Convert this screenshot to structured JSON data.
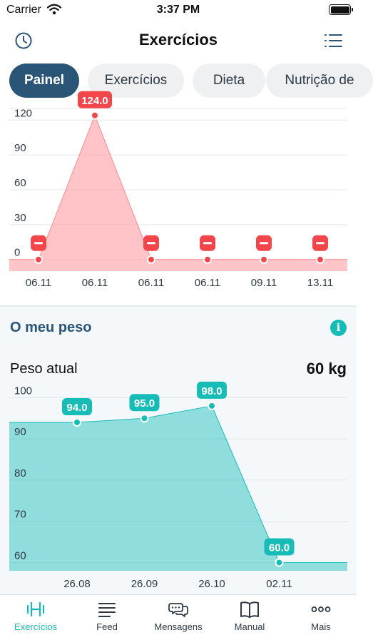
{
  "status_bar": {
    "carrier": "Carrier",
    "time": "3:37 PM"
  },
  "header": {
    "title": "Exercícios"
  },
  "tabs": [
    {
      "label": "Painel",
      "active": true
    },
    {
      "label": "Exercícios",
      "active": false
    },
    {
      "label": "Dieta",
      "active": false
    },
    {
      "label": "Nutrição de",
      "active": false
    }
  ],
  "chart_data": [
    {
      "type": "area",
      "categories": [
        "06.11",
        "06.11",
        "06.11",
        "06.11",
        "09.11",
        "13.11"
      ],
      "values": [
        0,
        124,
        0,
        0,
        0,
        0
      ],
      "point_labels": [
        "",
        "124.0",
        "",
        "",
        "",
        ""
      ],
      "yticks": [
        0,
        30,
        60,
        90,
        120
      ],
      "ylim": [
        -10,
        130
      ],
      "color": "#ff8a8f",
      "label_color": "#f2464b"
    },
    {
      "type": "area",
      "categories": [
        "26.08",
        "26.09",
        "26.10",
        "02.11"
      ],
      "values": [
        94,
        95,
        98,
        60
      ],
      "point_labels": [
        "94.0",
        "95.0",
        "98.0",
        "60.0"
      ],
      "yticks": [
        60,
        70,
        80,
        90,
        100
      ],
      "ylim": [
        58,
        103
      ],
      "color": "#17bcb7"
    }
  ],
  "weight_card": {
    "title": "O meu peso",
    "current_label": "Peso atual",
    "current_value": "60 kg"
  },
  "bottom_tabs": [
    {
      "label": "Exercícios",
      "icon": "dumbbell-icon",
      "active": true
    },
    {
      "label": "Feed",
      "icon": "feed-lines-icon",
      "active": false
    },
    {
      "label": "Mensagens",
      "icon": "chat-bubbles-icon",
      "active": false
    },
    {
      "label": "Manual",
      "icon": "book-icon",
      "active": false
    },
    {
      "label": "Mais",
      "icon": "more-dots-icon",
      "active": false
    }
  ],
  "colors": {
    "accent": "#17bcb7",
    "primary": "#2b5577",
    "negative": "#f2464b"
  }
}
